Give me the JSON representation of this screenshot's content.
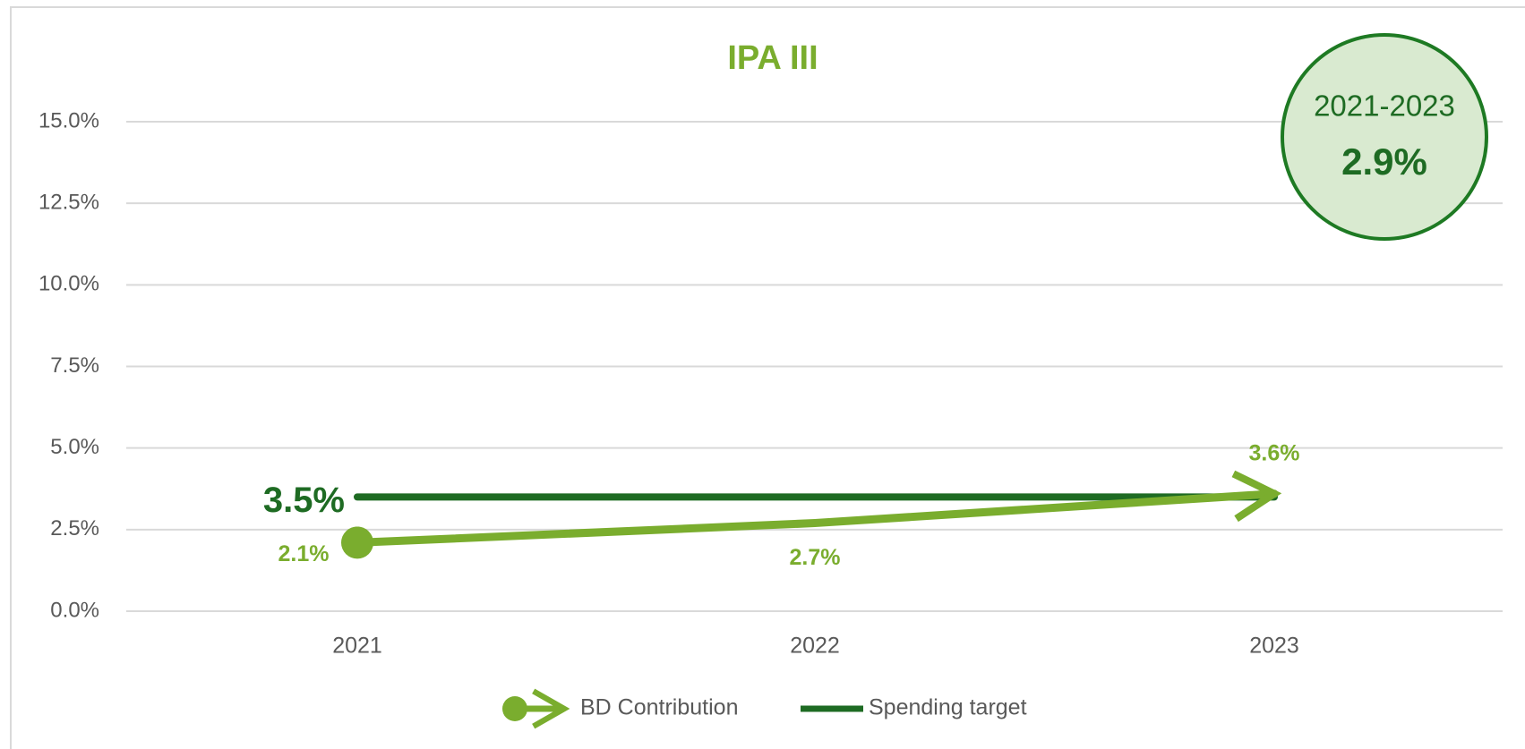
{
  "chart_data": {
    "type": "line",
    "title": "IPA III",
    "categories": [
      "2021",
      "2022",
      "2023"
    ],
    "series": [
      {
        "name": "BD Contribution",
        "color": "#7aad2e",
        "values": [
          2.1,
          2.7,
          3.6
        ],
        "value_labels": [
          "2.1%",
          "2.7%",
          "3.6%"
        ]
      },
      {
        "name": "Spending target",
        "color": "#1e6b23",
        "values": [
          3.5,
          3.5,
          3.5
        ],
        "value_labels": [
          "3.5%",
          null,
          null
        ]
      }
    ],
    "ylim": [
      0,
      15
    ],
    "yticks": [
      {
        "value": 0,
        "label": "0.0%"
      },
      {
        "value": 2.5,
        "label": "2.5%"
      },
      {
        "value": 5,
        "label": "5.0%"
      },
      {
        "value": 7.5,
        "label": "7.5%"
      },
      {
        "value": 10,
        "label": "10.0%"
      },
      {
        "value": 12.5,
        "label": "12.5%"
      },
      {
        "value": 15,
        "label": "15.0%"
      }
    ],
    "grid": true,
    "legend": "bottom",
    "annotation": {
      "label": "2021-2023",
      "value": "2.9%"
    }
  }
}
